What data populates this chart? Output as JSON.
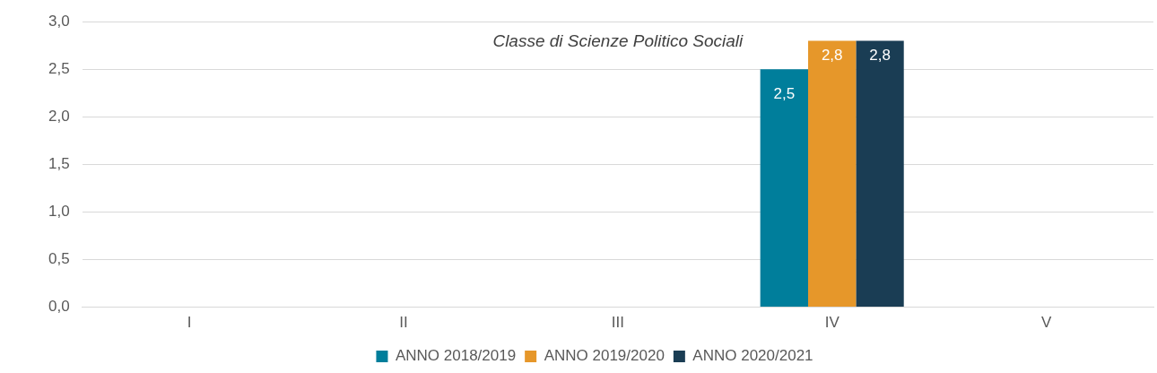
{
  "chart_data": {
    "type": "bar",
    "title": "Classe di Scienze Politico Sociali",
    "categories": [
      "I",
      "II",
      "III",
      "IV",
      "V"
    ],
    "series": [
      {
        "name": "ANNO 2018/2019",
        "color": "#007e9b",
        "values": [
          null,
          null,
          null,
          2.5,
          null
        ],
        "value_labels": [
          null,
          null,
          null,
          "2,5",
          null
        ]
      },
      {
        "name": "ANNO 2019/2020",
        "color": "#e6972a",
        "values": [
          null,
          null,
          null,
          2.8,
          null
        ],
        "value_labels": [
          null,
          null,
          null,
          "2,8",
          null
        ]
      },
      {
        "name": "ANNO 2020/2021",
        "color": "#1a3d54",
        "values": [
          null,
          null,
          null,
          2.8,
          null
        ],
        "value_labels": [
          null,
          null,
          null,
          "2,8",
          null
        ]
      }
    ],
    "ylim": [
      0,
      3
    ],
    "yticks": [
      {
        "value": 0,
        "label": "0,0"
      },
      {
        "value": 0.5,
        "label": "0,5"
      },
      {
        "value": 1,
        "label": "1,0"
      },
      {
        "value": 1.5,
        "label": "1,5"
      },
      {
        "value": 2,
        "label": "2,0"
      },
      {
        "value": 2.5,
        "label": "2,5"
      },
      {
        "value": 3,
        "label": "3,0"
      }
    ],
    "grid": "y",
    "legend": "bottom"
  }
}
